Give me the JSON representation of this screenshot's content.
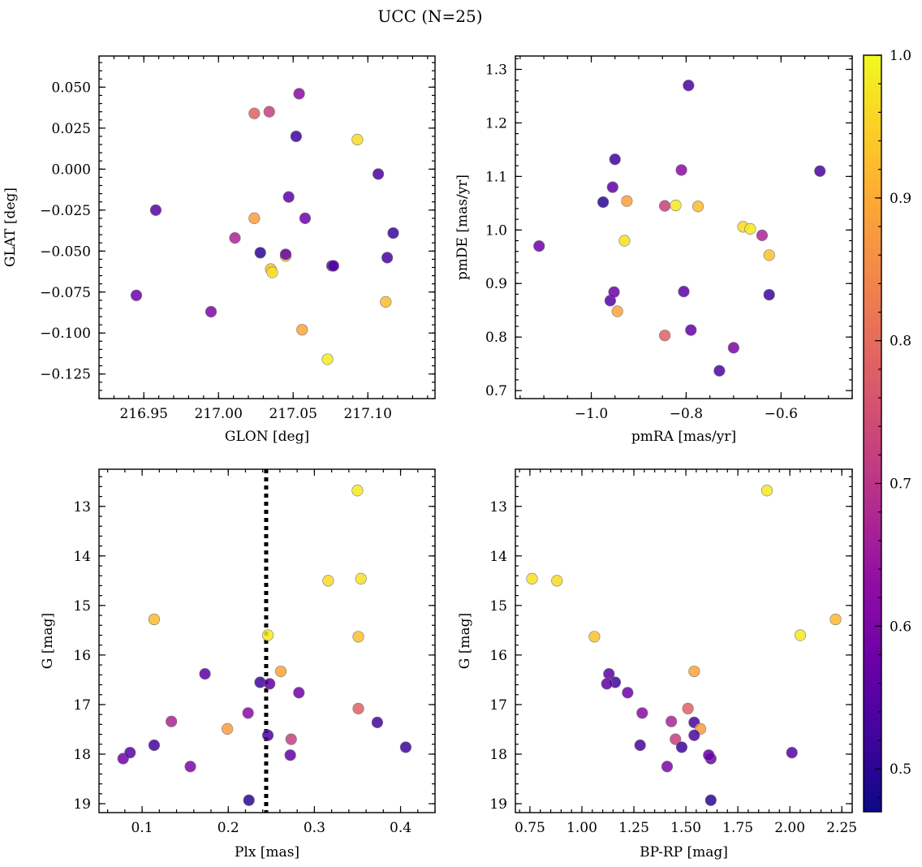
{
  "chart_data": {
    "suptitle": "UCC (N=25)",
    "type": "scatter",
    "colorbar": {
      "colormap": "plasma",
      "range": [
        0.47,
        1.0
      ],
      "ticks": [
        0.5,
        0.6,
        0.7,
        0.8,
        0.9,
        1.0
      ],
      "tick_labels": [
        "0.5",
        "0.6",
        "0.7",
        "0.8",
        "0.9",
        "1.0"
      ]
    },
    "stars": [
      {
        "glon": 216.945,
        "glat": -0.077,
        "pmra": -1.11,
        "pmde": 0.97,
        "plx": 0.078,
        "g": 18.09,
        "bprp": 1.62,
        "c": 0.58
      },
      {
        "glon": 216.958,
        "glat": -0.025,
        "pmra": -0.96,
        "pmde": 0.868,
        "plx": 0.086,
        "g": 17.97,
        "bprp": 2.01,
        "c": 0.55
      },
      {
        "glon": 216.995,
        "glat": -0.087,
        "pmra": -0.7,
        "pmde": 0.78,
        "plx": 0.156,
        "g": 18.25,
        "bprp": 1.41,
        "c": 0.6
      },
      {
        "glon": 217.011,
        "glat": -0.042,
        "pmra": -0.64,
        "pmde": 0.99,
        "plx": 0.134,
        "g": 17.34,
        "bprp": 1.43,
        "c": 0.67
      },
      {
        "glon": 217.024,
        "glat": 0.034,
        "pmra": -0.845,
        "pmde": 0.803,
        "plx": 0.351,
        "g": 17.08,
        "bprp": 1.51,
        "c": 0.78
      },
      {
        "glon": 217.034,
        "glat": 0.035,
        "pmra": -0.845,
        "pmde": 1.045,
        "plx": 0.273,
        "g": 17.7,
        "bprp": 1.45,
        "c": 0.72
      },
      {
        "glon": 217.054,
        "glat": 0.046,
        "pmra": -0.81,
        "pmde": 1.112,
        "plx": 0.223,
        "g": 17.17,
        "bprp": 1.29,
        "c": 0.62
      },
      {
        "glon": 217.052,
        "glat": 0.02,
        "pmra": -0.95,
        "pmde": 1.132,
        "plx": 0.237,
        "g": 16.55,
        "bprp": 1.16,
        "c": 0.52
      },
      {
        "glon": 217.093,
        "glat": 0.018,
        "pmra": -0.68,
        "pmde": 1.006,
        "plx": 0.316,
        "g": 14.5,
        "bprp": 0.88,
        "c": 0.96
      },
      {
        "glon": 217.107,
        "glat": -0.003,
        "pmra": -0.518,
        "pmde": 1.11,
        "plx": 0.373,
        "g": 17.36,
        "bprp": 1.54,
        "c": 0.53
      },
      {
        "glon": 217.047,
        "glat": -0.017,
        "pmra": -0.955,
        "pmde": 1.08,
        "plx": 0.173,
        "g": 16.38,
        "bprp": 1.13,
        "c": 0.56
      },
      {
        "glon": 217.058,
        "glat": -0.03,
        "pmra": -0.952,
        "pmde": 0.884,
        "plx": 0.282,
        "g": 16.76,
        "bprp": 1.22,
        "c": 0.58
      },
      {
        "glon": 217.024,
        "glat": -0.03,
        "pmra": -0.925,
        "pmde": 1.054,
        "plx": 0.199,
        "g": 17.49,
        "bprp": 1.57,
        "c": 0.88
      },
      {
        "glon": 217.117,
        "glat": -0.039,
        "pmra": -0.625,
        "pmde": 0.879,
        "plx": 0.406,
        "g": 17.86,
        "bprp": 1.48,
        "c": 0.52
      },
      {
        "glon": 217.028,
        "glat": -0.051,
        "pmra": -0.975,
        "pmde": 1.052,
        "plx": 0.224,
        "g": 18.93,
        "bprp": 1.62,
        "c": 0.5
      },
      {
        "glon": 217.045,
        "glat": -0.053,
        "pmra": -0.822,
        "pmde": 1.046,
        "plx": 0.246,
        "g": 15.6,
        "bprp": 2.05,
        "c": 0.98
      },
      {
        "glon": 217.035,
        "glat": -0.061,
        "pmra": -0.625,
        "pmde": 0.953,
        "plx": 0.351,
        "g": 15.63,
        "bprp": 1.06,
        "c": 0.93
      },
      {
        "glon": 217.036,
        "glat": -0.063,
        "pmra": -0.93,
        "pmde": 0.98,
        "plx": 0.354,
        "g": 14.46,
        "bprp": 0.76,
        "c": 0.97
      },
      {
        "glon": 217.076,
        "glat": -0.059,
        "pmra": -0.805,
        "pmde": 0.885,
        "plx": 0.248,
        "g": 16.58,
        "bprp": 1.12,
        "c": 0.56
      },
      {
        "glon": 217.077,
        "glat": -0.059,
        "pmra": -0.73,
        "pmde": 0.737,
        "plx": 0.246,
        "g": 17.62,
        "bprp": 1.54,
        "c": 0.54
      },
      {
        "glon": 217.113,
        "glat": -0.054,
        "pmra": -0.795,
        "pmde": 1.27,
        "plx": 0.114,
        "g": 17.82,
        "bprp": 1.28,
        "c": 0.53
      },
      {
        "glon": 217.056,
        "glat": -0.098,
        "pmra": -0.945,
        "pmde": 0.848,
        "plx": 0.261,
        "g": 16.33,
        "bprp": 1.54,
        "c": 0.89
      },
      {
        "glon": 217.112,
        "glat": -0.081,
        "pmra": -0.775,
        "pmde": 1.044,
        "plx": 0.114,
        "g": 15.28,
        "bprp": 2.22,
        "c": 0.92
      },
      {
        "glon": 217.073,
        "glat": -0.116,
        "pmra": -0.665,
        "pmde": 1.002,
        "plx": 0.35,
        "g": 12.68,
        "bprp": 1.89,
        "c": 0.98
      },
      {
        "glon": 217.045,
        "glat": -0.052,
        "pmra": -0.79,
        "pmde": 0.813,
        "plx": 0.272,
        "g": 18.02,
        "bprp": 1.61,
        "c": 0.57
      }
    ],
    "panels": [
      {
        "id": "glon-glat",
        "xkey": "glon",
        "ykey": "glat",
        "xlabel": "GLON [deg]",
        "ylabel": "GLAT [deg]",
        "xlim": [
          216.92,
          217.145
        ],
        "ylim": [
          -0.14,
          0.069
        ],
        "y_inverted": false,
        "xticks": [
          216.95,
          217.0,
          217.05,
          217.1
        ],
        "xtick_labels": [
          "216.95",
          "217.00",
          "217.05",
          "217.10"
        ],
        "yticks": [
          -0.125,
          -0.1,
          -0.075,
          -0.05,
          -0.025,
          0.0,
          0.025,
          0.05
        ],
        "ytick_labels": [
          "−0.125",
          "−0.100",
          "−0.075",
          "−0.050",
          "−0.025",
          "0.000",
          "0.025",
          "0.050"
        ],
        "xminor_step": 0.01,
        "yminor_step": 0.005
      },
      {
        "id": "pm",
        "xkey": "pmra",
        "ykey": "pmde",
        "xlabel": "pmRA [mas/yr]",
        "ylabel": "pmDE [mas/yr]",
        "xlim": [
          -1.16,
          -0.45
        ],
        "ylim": [
          0.685,
          1.325
        ],
        "y_inverted": false,
        "xticks": [
          -1.0,
          -0.8,
          -0.6
        ],
        "xtick_labels": [
          "−1.0",
          "−0.8",
          "−0.6"
        ],
        "yticks": [
          0.7,
          0.8,
          0.9,
          1.0,
          1.1,
          1.2,
          1.3
        ],
        "ytick_labels": [
          "0.7",
          "0.8",
          "0.9",
          "1.0",
          "1.1",
          "1.2",
          "1.3"
        ],
        "xminor_step": 0.05,
        "yminor_step": 0.02
      },
      {
        "id": "plx-g",
        "xkey": "plx",
        "ykey": "g",
        "xlabel": "Plx [mas]",
        "ylabel": "G [mag]",
        "xlim": [
          0.05,
          0.44
        ],
        "ylim": [
          12.25,
          19.18
        ],
        "y_inverted": true,
        "xticks": [
          0.1,
          0.2,
          0.3,
          0.4
        ],
        "xtick_labels": [
          "0.1",
          "0.2",
          "0.3",
          "0.4"
        ],
        "yticks": [
          13,
          14,
          15,
          16,
          17,
          18,
          19
        ],
        "ytick_labels": [
          "13",
          "14",
          "15",
          "16",
          "17",
          "18",
          "19"
        ],
        "xminor_step": 0.02,
        "yminor_step": 0.2,
        "vline": 0.244
      },
      {
        "id": "cmd",
        "xkey": "bprp",
        "ykey": "g",
        "xlabel": "BP-RP [mag]",
        "ylabel": "G [mag]",
        "xlim": [
          0.68,
          2.3
        ],
        "ylim": [
          12.25,
          19.18
        ],
        "y_inverted": true,
        "xticks": [
          0.75,
          1.0,
          1.25,
          1.5,
          1.75,
          2.0,
          2.25
        ],
        "xtick_labels": [
          "0.75",
          "1.00",
          "1.25",
          "1.50",
          "1.75",
          "2.00",
          "2.25"
        ],
        "yticks": [
          13,
          14,
          15,
          16,
          17,
          18,
          19
        ],
        "ytick_labels": [
          "13",
          "14",
          "15",
          "16",
          "17",
          "18",
          "19"
        ],
        "xminor_step": 0.05,
        "yminor_step": 0.2
      }
    ]
  }
}
